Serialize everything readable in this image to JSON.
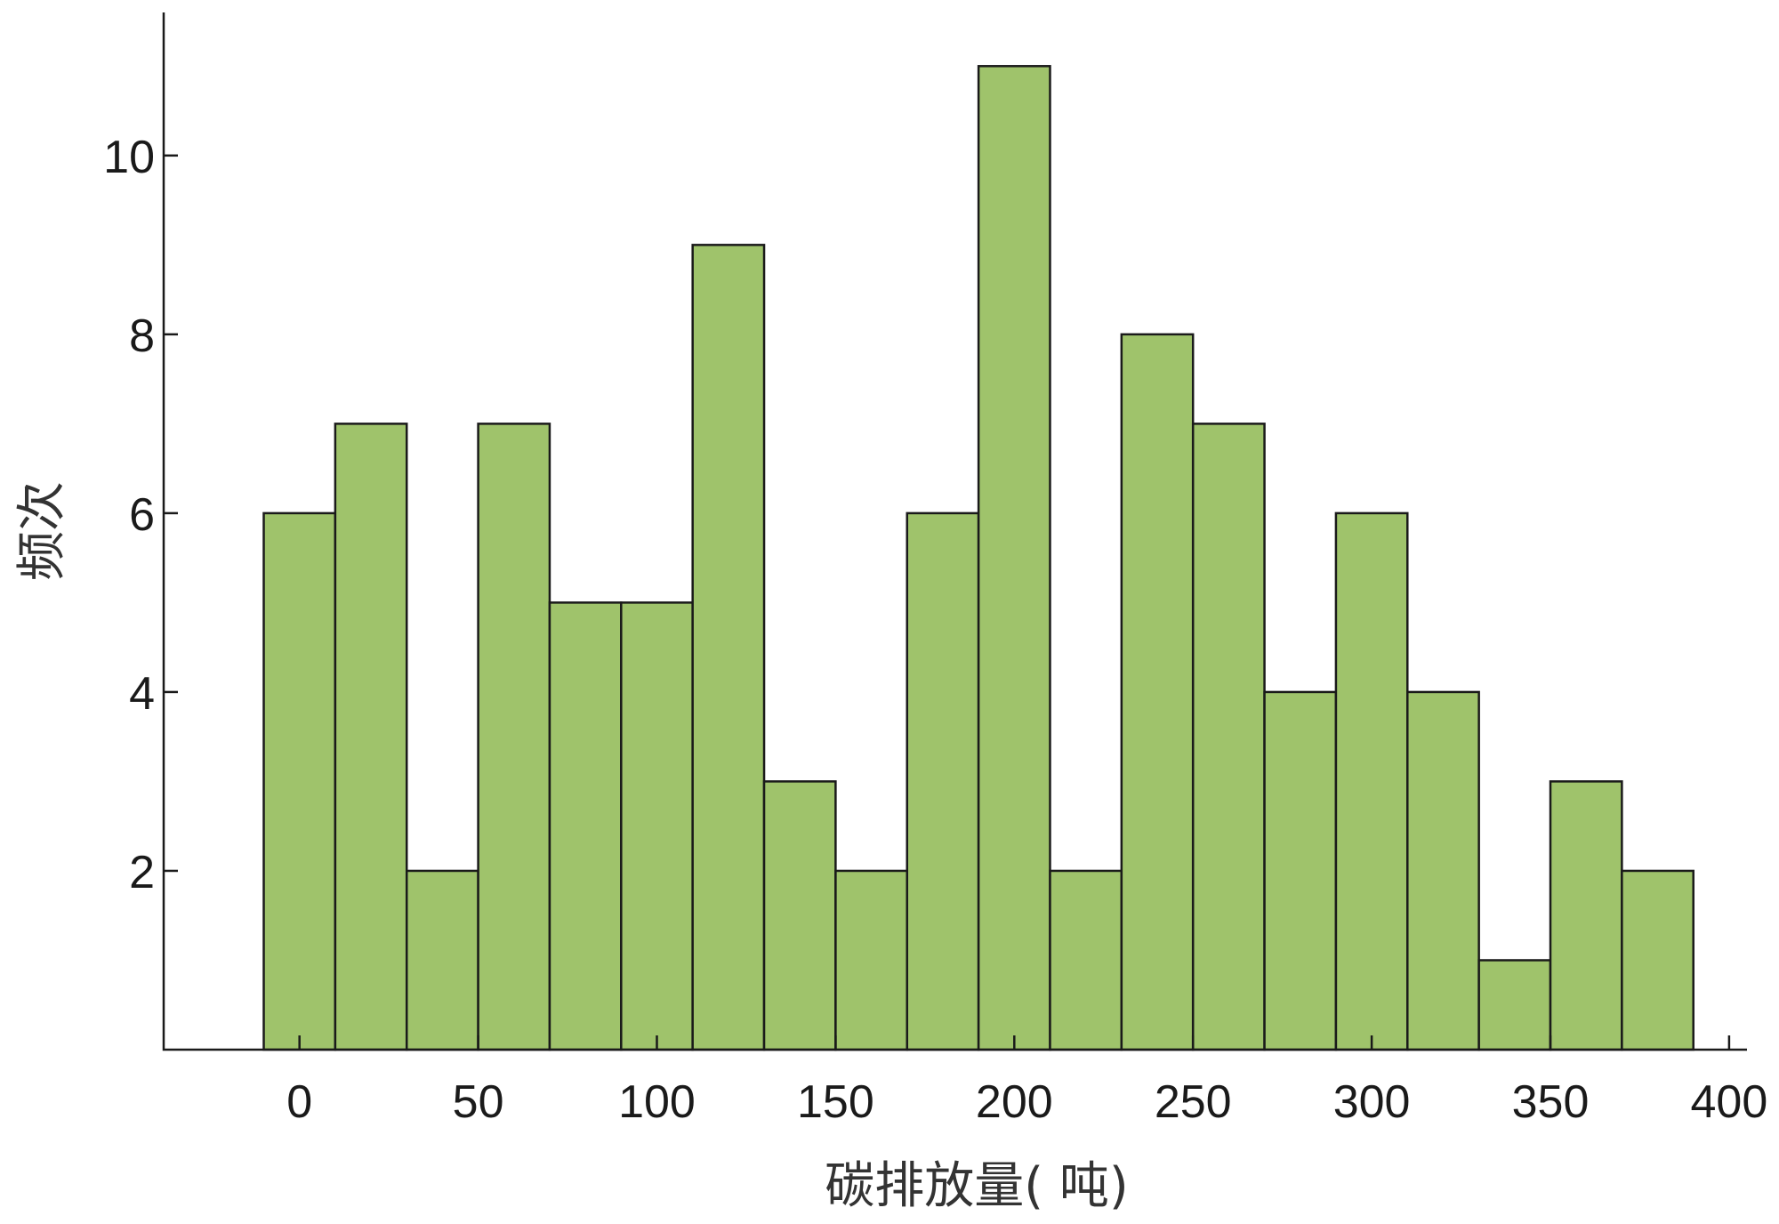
{
  "chart_data": {
    "type": "bar",
    "subtype": "histogram",
    "bin_width": 20,
    "bins": [
      {
        "start": -10,
        "end": 10,
        "count": 6
      },
      {
        "start": 10,
        "end": 30,
        "count": 7
      },
      {
        "start": 30,
        "end": 50,
        "count": 2
      },
      {
        "start": 50,
        "end": 70,
        "count": 7
      },
      {
        "start": 70,
        "end": 90,
        "count": 5
      },
      {
        "start": 90,
        "end": 110,
        "count": 5
      },
      {
        "start": 110,
        "end": 130,
        "count": 9
      },
      {
        "start": 130,
        "end": 150,
        "count": 3
      },
      {
        "start": 150,
        "end": 170,
        "count": 2
      },
      {
        "start": 170,
        "end": 190,
        "count": 6
      },
      {
        "start": 190,
        "end": 210,
        "count": 11
      },
      {
        "start": 210,
        "end": 230,
        "count": 2
      },
      {
        "start": 230,
        "end": 250,
        "count": 8
      },
      {
        "start": 250,
        "end": 270,
        "count": 7
      },
      {
        "start": 270,
        "end": 290,
        "count": 4
      },
      {
        "start": 290,
        "end": 310,
        "count": 6
      },
      {
        "start": 310,
        "end": 330,
        "count": 4
      },
      {
        "start": 330,
        "end": 350,
        "count": 1
      },
      {
        "start": 350,
        "end": 370,
        "count": 3
      },
      {
        "start": 370,
        "end": 390,
        "count": 2
      }
    ],
    "xlabel": "碳排放量( 吨)",
    "ylabel": "频次",
    "xlim": [
      -38,
      405
    ],
    "ylim": [
      0,
      11.6
    ],
    "xticks": [
      0,
      50,
      100,
      150,
      200,
      250,
      300,
      350,
      400
    ],
    "xtick_labels": [
      "0",
      "50",
      "100",
      "150",
      "200",
      "250",
      "300",
      "350",
      "400"
    ],
    "yticks": [
      2,
      4,
      6,
      8,
      10
    ],
    "ytick_labels": [
      "2",
      "4",
      "6",
      "8",
      "10"
    ],
    "grid": false,
    "legend": "none",
    "bar_color": "#9fc36b",
    "edge_color": "#1a1a1a"
  }
}
